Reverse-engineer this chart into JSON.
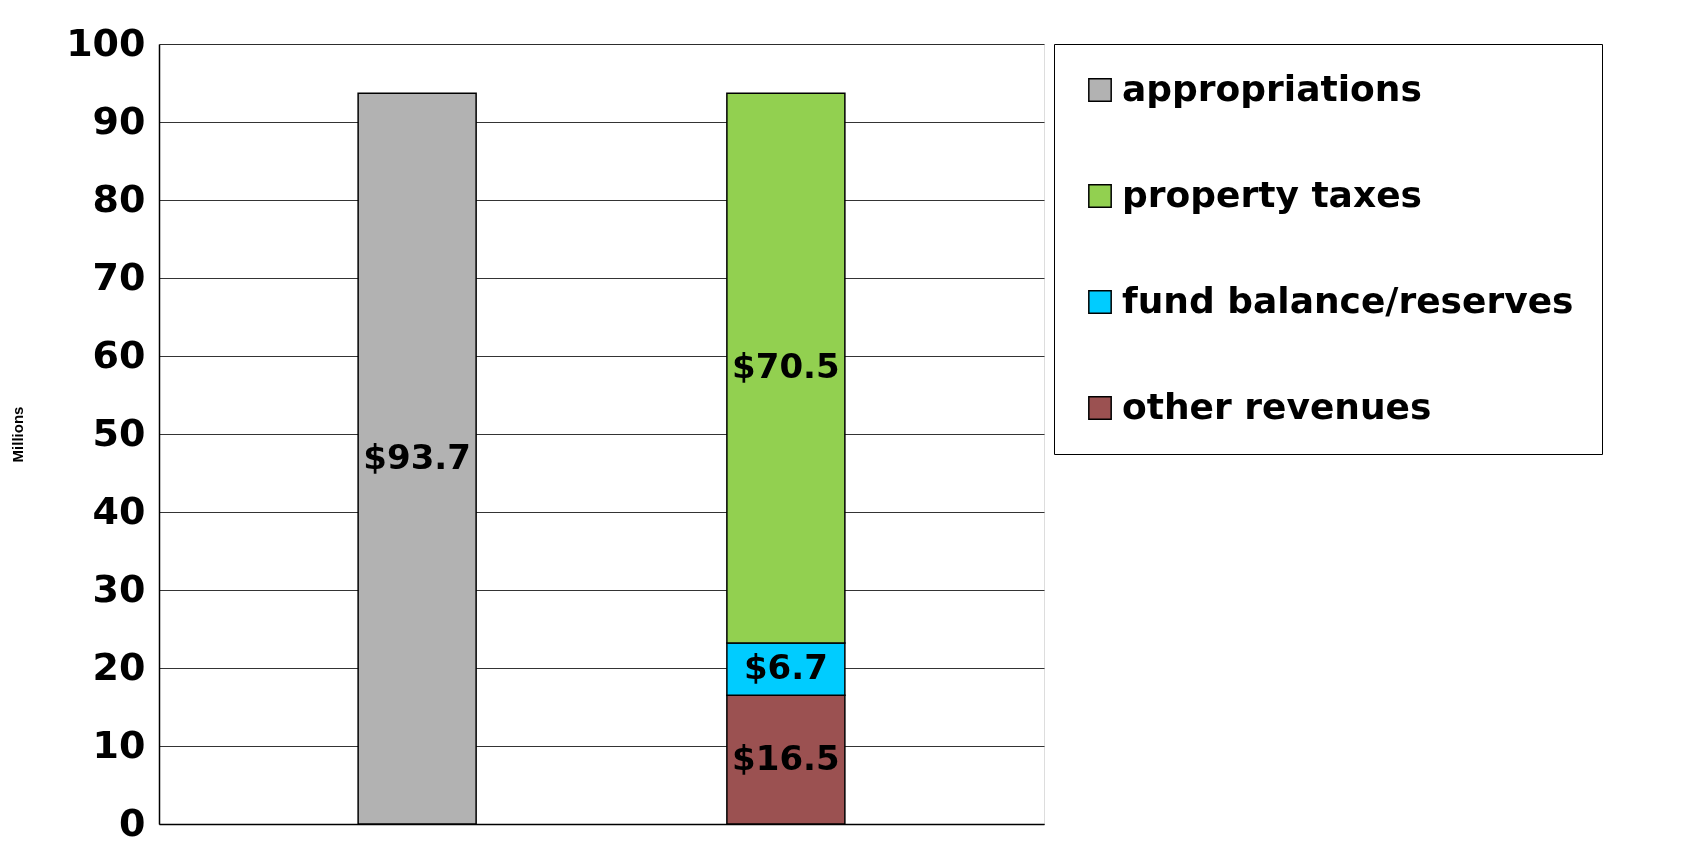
{
  "chart_data": {
    "type": "bar",
    "stacked": true,
    "ylabel": "Millions",
    "categories": [
      null,
      null
    ],
    "series": [
      {
        "name": "appropriations",
        "color": "#b2b2b2",
        "values": [
          93.7,
          null
        ],
        "value_labels": [
          "$93.7",
          null
        ]
      },
      {
        "name": "other revenues",
        "color": "#9b5151",
        "values": [
          null,
          16.5
        ],
        "value_labels": [
          null,
          "$16.5"
        ]
      },
      {
        "name": "fund balance/reserves",
        "color": "#00ccff",
        "values": [
          null,
          6.7
        ],
        "value_labels": [
          null,
          "$6.7"
        ]
      },
      {
        "name": "property taxes",
        "color": "#92d050",
        "values": [
          null,
          70.5
        ],
        "value_labels": [
          null,
          "$70.5"
        ]
      }
    ],
    "ylim": [
      0,
      100
    ],
    "yticks": [
      0,
      10,
      20,
      30,
      40,
      50,
      60,
      70,
      80,
      90,
      100
    ],
    "grid": "y",
    "legend": "right",
    "tick_labels": "y"
  }
}
